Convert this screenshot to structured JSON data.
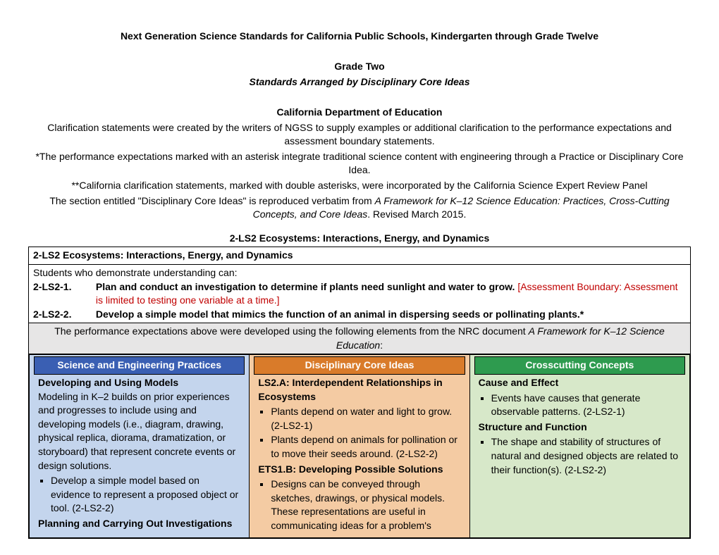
{
  "header": {
    "title": "Next Generation Science Standards for California Public Schools, Kindergarten through Grade Twelve",
    "grade": "Grade Two",
    "arranged": "Standards Arranged by Disciplinary Core Ideas",
    "dept": "California Department of Education",
    "intro1": "Clarification statements were created by the writers of NGSS to supply examples or additional clarification to the performance expectations and assessment boundary statements.",
    "intro2": "*The performance expectations marked with an asterisk integrate traditional science content with engineering through a Practice or Disciplinary Core Idea.",
    "intro3": "**California clarification statements, marked with double asterisks, were incorporated by the California Science Expert Review Panel",
    "intro4a": "The section entitled \"Disciplinary Core Ideas\" is reproduced verbatim from ",
    "intro4b": "A Framework for K–12 Science Education: Practices, Cross-Cutting Concepts, and Core Ideas",
    "intro4c": ". Revised March 2015."
  },
  "section_title": "2-LS2 Ecosystems: Interactions, Energy, and Dynamics",
  "box": {
    "title": "2-LS2 Ecosystems: Interactions, Energy, and Dynamics",
    "demo": "Students who demonstrate understanding can:",
    "pe1_code": "2-LS2-1.",
    "pe1_text": "Plan and conduct an investigation to determine if plants need sunlight and water to grow. ",
    "pe1_boundary": "[Assessment Boundary: Assessment is limited to testing one variable at a time.]",
    "pe2_code": "2-LS2-2.",
    "pe2_text": "Develop a simple model that mimics the function of an animal in dispersing seeds or pollinating plants.*",
    "framework_a": "The performance expectations above were developed using the following elements from the NRC document ",
    "framework_b": "A Framework for K–12 Science Education",
    "framework_c": ":"
  },
  "cols": {
    "sep": {
      "head": "Science and Engineering Practices",
      "h1": "Developing and Using Models",
      "p1": "Modeling in K–2 builds on prior experiences and progresses to include using and developing models (i.e., diagram, drawing, physical replica, diorama, dramatization, or storyboard) that represent concrete events or design solutions.",
      "b1": "Develop a simple model based on evidence to represent a proposed object or tool. (2-LS2-2)",
      "h2": "Planning and Carrying Out Investigations"
    },
    "dci": {
      "head": "Disciplinary Core Ideas",
      "h1": "LS2.A: Interdependent Relationships in Ecosystems",
      "b1": "Plants depend on water and light to grow. (2-LS2-1)",
      "b2": "Plants depend on animals for pollination or to move their seeds around. (2-LS2-2)",
      "h2": "ETS1.B: Developing Possible Solutions",
      "b3": "Designs can be conveyed through sketches, drawings, or physical models. These representations are useful in communicating ideas for a problem's"
    },
    "ccc": {
      "head": "Crosscutting Concepts",
      "h1": "Cause and Effect",
      "b1": "Events have causes that generate observable patterns. (2-LS2-1)",
      "h2": "Structure and Function",
      "b2": "The shape and stability of structures of natural and designed objects are related to their function(s). (2-LS2-2)"
    }
  },
  "colors": {
    "blue_head": "#3a5fb3",
    "blue_body": "#c4d5ed",
    "orange_head": "#d97b2a",
    "orange_body": "#f4cba3",
    "green_head": "#2e9b4f",
    "green_body": "#d7e8c9",
    "boundary": "#c00000"
  }
}
